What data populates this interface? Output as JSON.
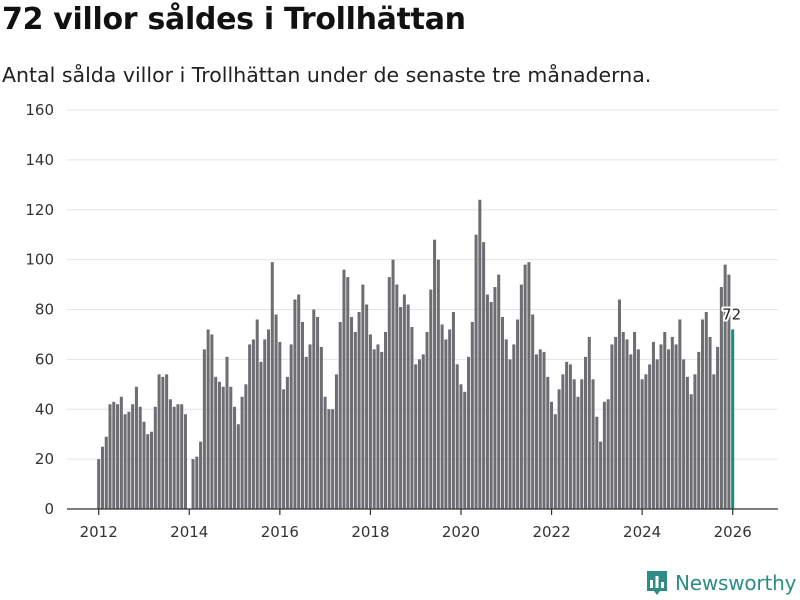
{
  "title": "72 villor såldes i Trollhättan",
  "subtitle": "Antal sålda villor i Trollhättan under de senaste tre månaderna.",
  "brand": {
    "name": "Newsworthy",
    "color": "#2e8c84",
    "icon": "bar-chart-logo-icon"
  },
  "colors": {
    "bar": "#6d6d72",
    "highlight": "#1a8b85",
    "grid": "#e4e4e4"
  },
  "chart_data": {
    "type": "bar",
    "title": "72 villor såldes i Trollhättan",
    "subtitle": "Antal sålda villor i Trollhättan under de senaste tre månaderna.",
    "xlabel": "",
    "ylabel": "",
    "ylim": [
      0,
      160
    ],
    "yticks": [
      0,
      20,
      40,
      60,
      80,
      100,
      120,
      140,
      160
    ],
    "xticks": [
      2012,
      2014,
      2016,
      2018,
      2020,
      2022,
      2024,
      2026
    ],
    "xlim": [
      2011.3,
      2027.0
    ],
    "grid": true,
    "start": 2012.0,
    "step": 0.08333,
    "values": [
      20,
      25,
      29,
      42,
      43,
      42,
      45,
      38,
      39,
      42,
      49,
      41,
      35,
      30,
      31,
      41,
      54,
      53,
      54,
      44,
      41,
      42,
      42,
      38,
      null,
      20,
      21,
      27,
      64,
      72,
      70,
      53,
      51,
      49,
      61,
      49,
      41,
      34,
      45,
      50,
      66,
      68,
      76,
      59,
      68,
      72,
      99,
      78,
      67,
      48,
      53,
      66,
      84,
      86,
      75,
      61,
      66,
      80,
      77,
      65,
      45,
      40,
      40,
      54,
      75,
      96,
      93,
      77,
      71,
      79,
      90,
      82,
      70,
      64,
      66,
      63,
      71,
      93,
      100,
      90,
      81,
      86,
      82,
      73,
      58,
      60,
      62,
      71,
      88,
      108,
      100,
      74,
      68,
      72,
      79,
      58,
      50,
      47,
      61,
      75,
      110,
      124,
      107,
      86,
      83,
      89,
      94,
      77,
      68,
      60,
      66,
      76,
      90,
      98,
      99,
      78,
      62,
      64,
      63,
      53,
      43,
      38,
      48,
      54,
      59,
      58,
      52,
      45,
      52,
      61,
      69,
      52,
      37,
      27,
      43,
      44,
      66,
      69,
      84,
      71,
      68,
      62,
      71,
      64,
      52,
      54,
      58,
      67,
      60,
      66,
      71,
      64,
      69,
      66,
      76,
      60,
      53,
      46,
      54,
      63,
      76,
      79,
      69,
      54,
      65,
      89,
      98,
      94,
      72
    ],
    "highlight_last": true,
    "annotations": [
      {
        "label": "72",
        "value": 72
      }
    ]
  }
}
